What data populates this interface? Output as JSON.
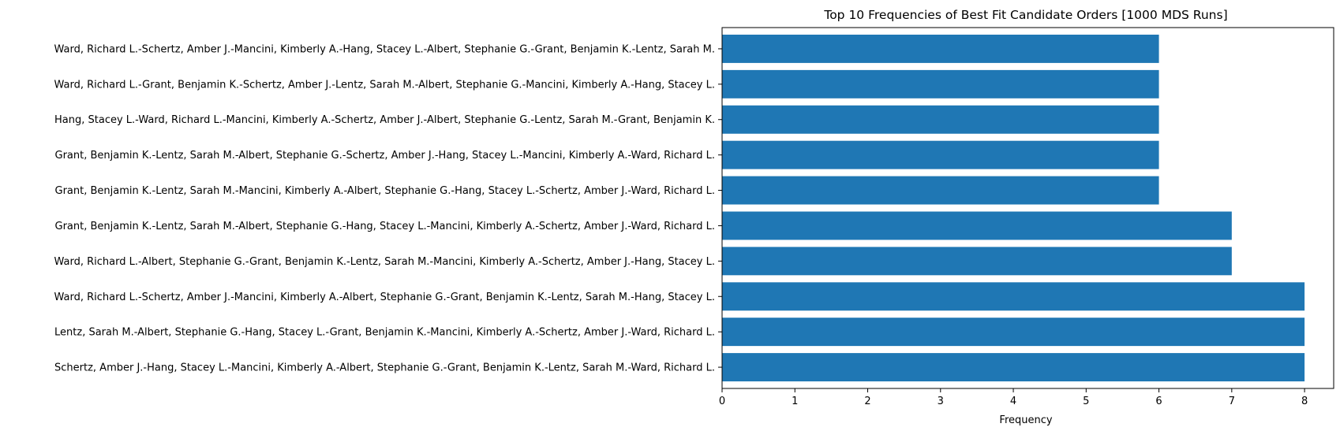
{
  "chart_data": {
    "type": "bar",
    "orientation": "horizontal",
    "title": "Top 10 Frequencies of Best Fit Candidate Orders [1000 MDS Runs]",
    "xlabel": "Frequency",
    "ylabel": "",
    "xlim": [
      0,
      8.4
    ],
    "xticks": [
      0,
      1,
      2,
      3,
      4,
      5,
      6,
      7,
      8
    ],
    "grid": false,
    "legend": "none",
    "bar_color": "#1f77b4",
    "categories": [
      "Ward, Richard L.-Schertz, Amber J.-Mancini, Kimberly A.-Hang, Stacey L.-Albert, Stephanie G.-Grant, Benjamin K.-Lentz, Sarah M.",
      "Ward, Richard L.-Grant, Benjamin K.-Schertz, Amber J.-Lentz, Sarah M.-Albert, Stephanie G.-Mancini, Kimberly A.-Hang, Stacey L.",
      "Hang, Stacey L.-Ward, Richard L.-Mancini, Kimberly A.-Schertz, Amber J.-Albert, Stephanie G.-Lentz, Sarah M.-Grant, Benjamin K.",
      "Grant, Benjamin K.-Lentz, Sarah M.-Albert, Stephanie G.-Schertz, Amber J.-Hang, Stacey L.-Mancini, Kimberly A.-Ward, Richard L.",
      "Grant, Benjamin K.-Lentz, Sarah M.-Mancini, Kimberly A.-Albert, Stephanie G.-Hang, Stacey L.-Schertz, Amber J.-Ward, Richard L.",
      "Grant, Benjamin K.-Lentz, Sarah M.-Albert, Stephanie G.-Hang, Stacey L.-Mancini, Kimberly A.-Schertz, Amber J.-Ward, Richard L.",
      "Ward, Richard L.-Albert, Stephanie G.-Grant, Benjamin K.-Lentz, Sarah M.-Mancini, Kimberly A.-Schertz, Amber J.-Hang, Stacey L.",
      "Ward, Richard L.-Schertz, Amber J.-Mancini, Kimberly A.-Albert, Stephanie G.-Grant, Benjamin K.-Lentz, Sarah M.-Hang, Stacey L.",
      "Lentz, Sarah M.-Albert, Stephanie G.-Hang, Stacey L.-Grant, Benjamin K.-Mancini, Kimberly A.-Schertz, Amber J.-Ward, Richard L.",
      "Schertz, Amber J.-Hang, Stacey L.-Mancini, Kimberly A.-Albert, Stephanie G.-Grant, Benjamin K.-Lentz, Sarah M.-Ward, Richard L."
    ],
    "values": [
      6,
      6,
      6,
      6,
      6,
      7,
      7,
      8,
      8,
      8
    ]
  }
}
